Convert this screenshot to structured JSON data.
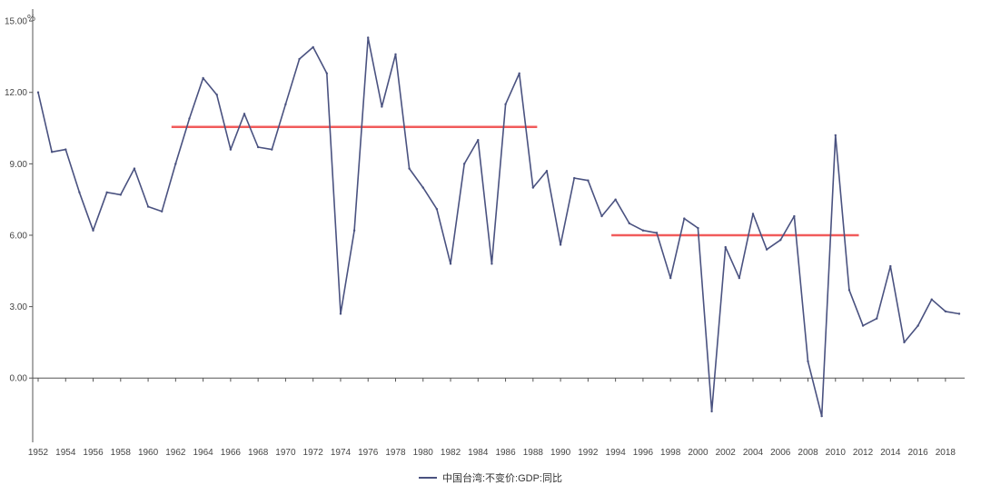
{
  "chart_data": {
    "type": "line",
    "unit": "%",
    "ylim": [
      -2.7,
      15.5
    ],
    "yticks": [
      0,
      3,
      6,
      9,
      12,
      15
    ],
    "ytick_labels": [
      "0.00",
      "3.00",
      "6.00",
      "9.00",
      "12.00",
      "15.00"
    ],
    "xlim": [
      1952,
      2019
    ],
    "xticks": [
      1952,
      1954,
      1956,
      1958,
      1960,
      1962,
      1964,
      1966,
      1968,
      1970,
      1972,
      1974,
      1976,
      1978,
      1980,
      1982,
      1984,
      1986,
      1988,
      1990,
      1992,
      1994,
      1996,
      1998,
      2000,
      2002,
      2004,
      2006,
      2008,
      2010,
      2012,
      2014,
      2016,
      2018
    ],
    "xtick_labels": [
      "1952",
      "1954",
      "1956",
      "1958",
      "1960",
      "1962",
      "1964",
      "1966",
      "1968",
      "1970",
      "1972",
      "1974",
      "1976",
      "1978",
      "1980",
      "1982",
      "1984",
      "1986",
      "1988",
      "1990",
      "1992",
      "1994",
      "1996",
      "1998",
      "2000",
      "2002",
      "2004",
      "2006",
      "2008",
      "2010",
      "2012",
      "2014",
      "2016",
      "2018"
    ],
    "grid": false,
    "legend_position": "bottom-center",
    "series": [
      {
        "name": "中国台湾:不变价:GDP:同比",
        "color": "#4a5280",
        "x": [
          1952,
          1953,
          1954,
          1955,
          1956,
          1957,
          1958,
          1959,
          1960,
          1961,
          1962,
          1963,
          1964,
          1965,
          1966,
          1967,
          1968,
          1969,
          1970,
          1971,
          1972,
          1973,
          1974,
          1975,
          1976,
          1977,
          1978,
          1979,
          1980,
          1981,
          1982,
          1983,
          1984,
          1985,
          1986,
          1987,
          1988,
          1989,
          1990,
          1991,
          1992,
          1993,
          1994,
          1995,
          1996,
          1997,
          1998,
          1999,
          2000,
          2001,
          2002,
          2003,
          2004,
          2005,
          2006,
          2007,
          2008,
          2009,
          2010,
          2011,
          2012,
          2013,
          2014,
          2015,
          2016,
          2017,
          2018,
          2019
        ],
        "values": [
          12.0,
          9.5,
          9.6,
          7.8,
          6.2,
          7.8,
          7.7,
          8.8,
          7.2,
          7.0,
          9.0,
          10.9,
          12.6,
          11.9,
          9.6,
          11.1,
          9.7,
          9.6,
          11.5,
          13.4,
          13.9,
          12.8,
          2.7,
          6.2,
          14.3,
          11.4,
          13.6,
          8.8,
          8.0,
          7.1,
          4.8,
          9.0,
          10.0,
          4.8,
          11.5,
          12.8,
          8.0,
          8.7,
          5.6,
          8.4,
          8.3,
          6.8,
          7.5,
          6.5,
          6.2,
          6.1,
          4.2,
          6.7,
          6.3,
          -1.4,
          5.5,
          4.2,
          6.9,
          5.4,
          5.8,
          6.8,
          0.7,
          -1.6,
          10.2,
          3.7,
          2.2,
          2.5,
          4.7,
          1.5,
          2.2,
          3.3,
          2.8,
          2.7
        ]
      }
    ],
    "annotations": [
      {
        "type": "hline",
        "x_start": 1961.7,
        "x_end": 1988.3,
        "y": 10.55,
        "color": "#f15b5b"
      },
      {
        "type": "hline",
        "x_start": 1993.7,
        "x_end": 2011.7,
        "y": 6.0,
        "color": "#f15b5b"
      }
    ]
  }
}
